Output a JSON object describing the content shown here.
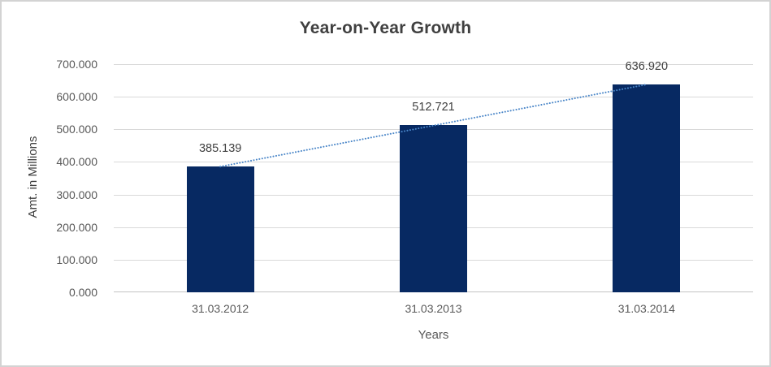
{
  "chart_data": {
    "type": "bar",
    "title": "Year-on-Year Growth",
    "xlabel": "Years",
    "ylabel": "Amt. in Millions",
    "categories": [
      "31.03.2012",
      "31.03.2013",
      "31.03.2014"
    ],
    "values": [
      385.139,
      512.721,
      636.92
    ],
    "data_labels": [
      "385.139",
      "512.721",
      "636.920"
    ],
    "ylim": [
      0,
      700
    ],
    "ytick_step": 100,
    "ytick_labels": [
      "0.000",
      "100.000",
      "200.000",
      "300.000",
      "400.000",
      "500.000",
      "600.000",
      "700.000"
    ],
    "grid": true,
    "legend": "none",
    "trendline": {
      "type": "linear",
      "style": "dotted"
    },
    "colors": {
      "bar": "#072962",
      "trendline": "#4a86c8",
      "gridline": "#d9d9d9",
      "axis_line": "#c3c3c3",
      "title_text": "#404040",
      "axis_text": "#595959",
      "data_label_text": "#404040",
      "border": "#d3d3d3"
    }
  }
}
